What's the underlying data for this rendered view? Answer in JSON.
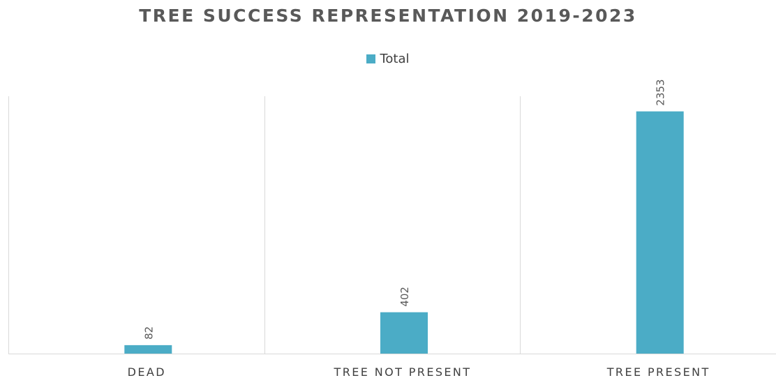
{
  "chart_data": {
    "type": "bar",
    "title": "TREE SUCCESS REPRESENTATION 2019-2023",
    "categories": [
      "DEAD",
      "TREE NOT PRESENT",
      "TREE PRESENT"
    ],
    "series": [
      {
        "name": "Total",
        "values": [
          82,
          402,
          2353
        ],
        "color": "#4bacc6"
      }
    ],
    "data_labels": [
      "82",
      "402",
      "2353"
    ],
    "xlabel": "",
    "ylabel": "",
    "ylim": [
      0,
      2500
    ],
    "legend_position": "top",
    "grid": false,
    "y_axis_visible": false
  }
}
